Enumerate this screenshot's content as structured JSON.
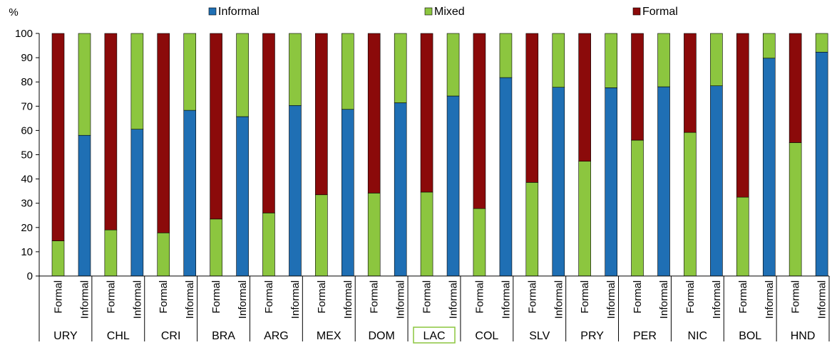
{
  "chart_data": {
    "type": "bar",
    "stacked": true,
    "y_unit": "%",
    "ylim": [
      0,
      100
    ],
    "yticks": [
      0,
      10,
      20,
      30,
      40,
      50,
      60,
      70,
      80,
      90,
      100
    ],
    "legend": [
      {
        "name": "Informal",
        "color": "#1f6fb4"
      },
      {
        "name": "Mixed",
        "color": "#8cc63f"
      },
      {
        "name": "Formal",
        "color": "#8b0a0a"
      }
    ],
    "legend_position": "top",
    "sub_categories": [
      "Formal",
      "Informal"
    ],
    "groups": [
      {
        "label": "URY",
        "highlight": false,
        "bars": [
          {
            "sub": "Formal",
            "mixed": 14.5,
            "formal": 85.5
          },
          {
            "sub": "Informal",
            "informal": 58,
            "mixed": 42
          }
        ]
      },
      {
        "label": "CHL",
        "highlight": false,
        "bars": [
          {
            "sub": "Formal",
            "mixed": 19,
            "formal": 81
          },
          {
            "sub": "Informal",
            "informal": 60.5,
            "mixed": 39.5
          }
        ]
      },
      {
        "label": "CRI",
        "highlight": false,
        "bars": [
          {
            "sub": "Formal",
            "mixed": 17.8,
            "formal": 82.2
          },
          {
            "sub": "Informal",
            "informal": 68.3,
            "mixed": 31.7
          }
        ]
      },
      {
        "label": "BRA",
        "highlight": false,
        "bars": [
          {
            "sub": "Formal",
            "mixed": 23.5,
            "formal": 76.5
          },
          {
            "sub": "Informal",
            "informal": 65.7,
            "mixed": 34.3
          }
        ]
      },
      {
        "label": "ARG",
        "highlight": false,
        "bars": [
          {
            "sub": "Formal",
            "mixed": 26,
            "formal": 74
          },
          {
            "sub": "Informal",
            "informal": 70.3,
            "mixed": 29.7
          }
        ]
      },
      {
        "label": "MEX",
        "highlight": false,
        "bars": [
          {
            "sub": "Formal",
            "mixed": 33.5,
            "formal": 66.5
          },
          {
            "sub": "Informal",
            "informal": 68.7,
            "mixed": 31.3
          }
        ]
      },
      {
        "label": "DOM",
        "highlight": false,
        "bars": [
          {
            "sub": "Formal",
            "mixed": 34.2,
            "formal": 65.8
          },
          {
            "sub": "Informal",
            "informal": 71.4,
            "mixed": 28.6
          }
        ]
      },
      {
        "label": "LAC",
        "highlight": true,
        "bars": [
          {
            "sub": "Formal",
            "mixed": 34.6,
            "formal": 65.4
          },
          {
            "sub": "Informal",
            "informal": 74.2,
            "mixed": 25.8
          }
        ]
      },
      {
        "label": "COL",
        "highlight": false,
        "bars": [
          {
            "sub": "Formal",
            "mixed": 27.8,
            "formal": 72.2
          },
          {
            "sub": "Informal",
            "informal": 81.8,
            "mixed": 18.2
          }
        ]
      },
      {
        "label": "SLV",
        "highlight": false,
        "bars": [
          {
            "sub": "Formal",
            "mixed": 38.6,
            "formal": 61.4
          },
          {
            "sub": "Informal",
            "informal": 77.8,
            "mixed": 22.2
          }
        ]
      },
      {
        "label": "PRY",
        "highlight": false,
        "bars": [
          {
            "sub": "Formal",
            "mixed": 47.3,
            "formal": 52.7
          },
          {
            "sub": "Informal",
            "informal": 77.6,
            "mixed": 22.4
          }
        ]
      },
      {
        "label": "PER",
        "highlight": false,
        "bars": [
          {
            "sub": "Formal",
            "mixed": 56,
            "formal": 44
          },
          {
            "sub": "Informal",
            "informal": 78,
            "mixed": 22
          }
        ]
      },
      {
        "label": "NIC",
        "highlight": false,
        "bars": [
          {
            "sub": "Formal",
            "mixed": 59.2,
            "formal": 40.8
          },
          {
            "sub": "Informal",
            "informal": 78.4,
            "mixed": 21.6
          }
        ]
      },
      {
        "label": "BOL",
        "highlight": false,
        "bars": [
          {
            "sub": "Formal",
            "mixed": 32.5,
            "formal": 67.5
          },
          {
            "sub": "Informal",
            "informal": 89.8,
            "mixed": 10.2
          }
        ]
      },
      {
        "label": "HND",
        "highlight": false,
        "bars": [
          {
            "sub": "Formal",
            "mixed": 55,
            "formal": 45
          },
          {
            "sub": "Informal",
            "informal": 92.3,
            "mixed": 7.7
          }
        ]
      }
    ]
  }
}
